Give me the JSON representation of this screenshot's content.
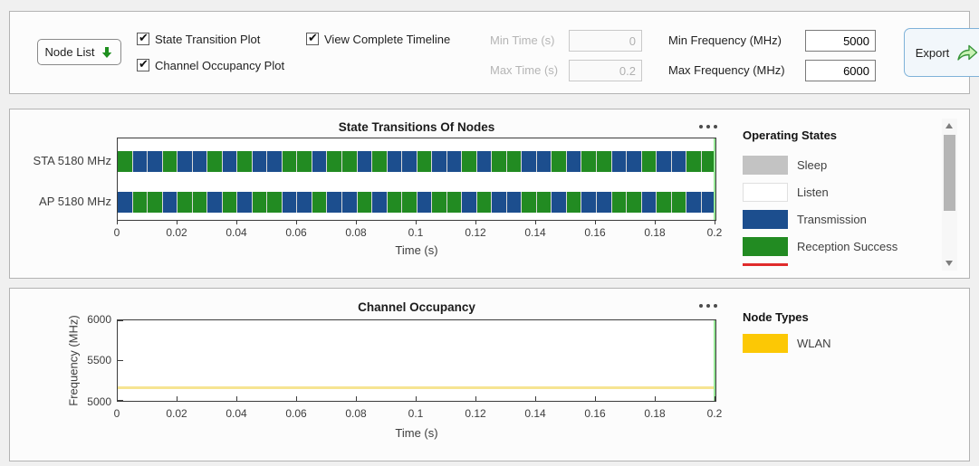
{
  "toolbar": {
    "node_list_label": "Node List",
    "checkboxes": [
      {
        "label": "State Transition Plot",
        "checked": true
      },
      {
        "label": "Channel Occupancy Plot",
        "checked": true
      },
      {
        "label": "View Complete Timeline",
        "checked": true
      }
    ],
    "fields": [
      {
        "label": "Min Time (s)",
        "value": "0",
        "disabled": true
      },
      {
        "label": "Max Time (s)",
        "value": "0.2",
        "disabled": true
      },
      {
        "label": "Min Frequency (MHz)",
        "value": "5000",
        "disabled": false
      },
      {
        "label": "Max Frequency (MHz)",
        "value": "6000",
        "disabled": false
      }
    ],
    "export_label": "Export",
    "icons": {
      "node_list_arrow": "green-down-arrow-icon",
      "export": "green-share-arrow-icon"
    }
  },
  "state_plot": {
    "title": "State Transitions Of Nodes",
    "menu_icon": "ellipsis-icon",
    "rows": [
      {
        "label": "STA 5180 MHz"
      },
      {
        "label": "AP 5180 MHz"
      }
    ],
    "sta_pattern": "GBBGBBGBGBBGGBGGBGBBGBBGBGGBBGBGGBBGBBGG",
    "pattern_key": {
      "G": "Reception Success",
      "B": "Transmission"
    },
    "ap_pattern_rule": "complement-of-sta",
    "x_ticks": [
      "0",
      "0.02",
      "0.04",
      "0.06",
      "0.08",
      "0.1",
      "0.12",
      "0.14",
      "0.16",
      "0.18",
      "0.2"
    ],
    "xlabel": "Time (s)",
    "legend": {
      "title": "Operating States",
      "items": [
        {
          "label": "Sleep",
          "color": "#c3c3c3",
          "style": "box"
        },
        {
          "label": "Listen",
          "color": "#ffffff",
          "style": "box"
        },
        {
          "label": "Transmission",
          "color": "#1c4e8e",
          "style": "box"
        },
        {
          "label": "Reception Success",
          "color": "#228b22",
          "style": "box"
        },
        {
          "label": "",
          "color": "#e02b2b",
          "style": "line"
        }
      ]
    }
  },
  "occupancy_plot": {
    "title": "Channel Occupancy",
    "menu_icon": "ellipsis-icon",
    "ylabel": "Frequency (MHz)",
    "y_ticks": [
      "6000",
      "5500",
      "5000"
    ],
    "x_ticks": [
      "0",
      "0.02",
      "0.04",
      "0.06",
      "0.08",
      "0.1",
      "0.12",
      "0.14",
      "0.16",
      "0.18",
      "0.2"
    ],
    "xlabel": "Time (s)",
    "occupied_frequency_mhz": 5180,
    "line_color": "#f6e492",
    "legend": {
      "title": "Node Types",
      "items": [
        {
          "label": "WLAN",
          "color": "#fcc805",
          "style": "box"
        }
      ]
    }
  },
  "colors": {
    "transmission": "#1c4e8e",
    "reception_success": "#228b22",
    "cursor_line": "#97e897",
    "segment_divider": "#d9d9d9"
  },
  "chart_data": [
    {
      "type": "timeline",
      "title": "State Transitions Of Nodes",
      "xlabel": "Time (s)",
      "xlim": [
        0,
        0.2
      ],
      "rows": [
        "STA 5180 MHz",
        "AP 5180 MHz"
      ],
      "states": [
        "Sleep",
        "Listen",
        "Transmission",
        "Reception Success"
      ],
      "description": "Both node timelines are fully occupied from 0 to 0.2 s with alternating Transmission (blue) and Reception Success (green) segments; STA and AP segments are complementary."
    },
    {
      "type": "line",
      "title": "Channel Occupancy",
      "xlabel": "Time (s)",
      "ylabel": "Frequency (MHz)",
      "xlim": [
        0,
        0.2
      ],
      "ylim": [
        5000,
        6000
      ],
      "series": [
        {
          "name": "WLAN",
          "x": [
            0,
            0.2
          ],
          "y": [
            5180,
            5180
          ]
        }
      ]
    }
  ]
}
